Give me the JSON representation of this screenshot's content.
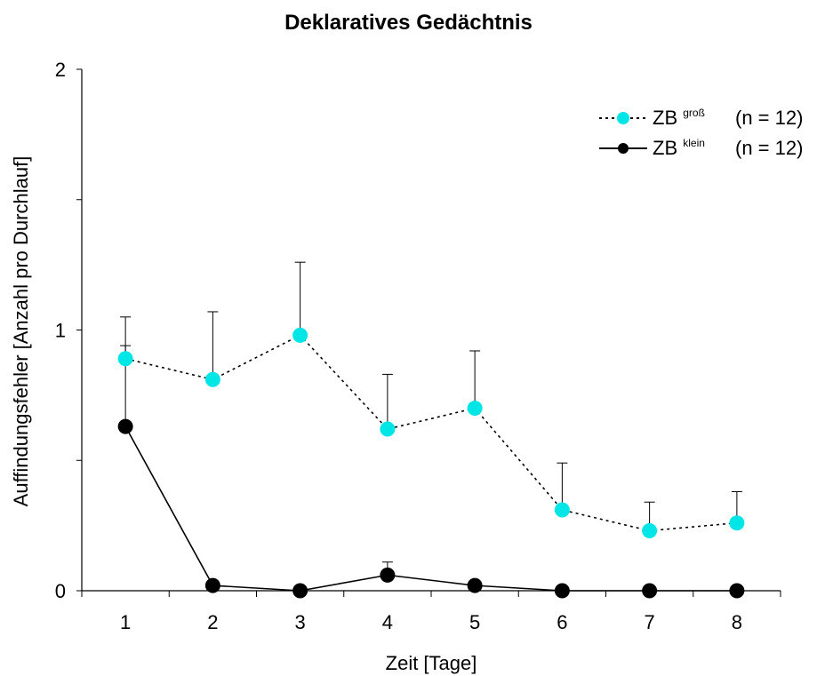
{
  "chart_data": {
    "type": "line",
    "title": "Deklaratives Gedächtnis",
    "xlabel": "Zeit [Tage]",
    "ylabel": "Auffindungsfehler [Anzahl pro Durchlauf]",
    "x": [
      1,
      2,
      3,
      4,
      5,
      6,
      7,
      8
    ],
    "ylim": [
      0,
      2
    ],
    "yticks": [
      0,
      1,
      2
    ],
    "grid": false,
    "legend_position": "top-right",
    "series": [
      {
        "name": "ZB groß",
        "label_main": "ZB",
        "label_sup": "groß",
        "label_n": "(n = 12)",
        "color": "#00e5e5",
        "line_style": "dotted",
        "values": [
          0.89,
          0.81,
          0.98,
          0.62,
          0.7,
          0.31,
          0.23,
          0.26
        ],
        "error_upper": [
          1.05,
          1.07,
          1.26,
          0.83,
          0.92,
          0.49,
          0.34,
          0.38
        ]
      },
      {
        "name": "ZB klein",
        "label_main": "ZB",
        "label_sup": "klein",
        "label_n": "(n = 12)",
        "color": "#000000",
        "line_style": "solid",
        "values": [
          0.63,
          0.02,
          0.0,
          0.06,
          0.02,
          0.0,
          0.0,
          0.0
        ],
        "error_upper": [
          0.94,
          null,
          null,
          0.11,
          null,
          null,
          null,
          null
        ]
      }
    ]
  }
}
